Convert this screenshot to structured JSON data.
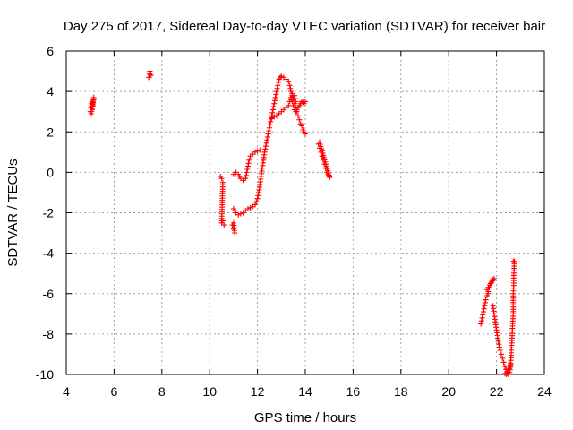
{
  "chart_data": {
    "type": "scatter",
    "title": "Day 275 of 2017, Sidereal Day-to-day VTEC variation (SDTVAR) for receiver bair",
    "xlabel": "GPS time / hours",
    "ylabel": "SDTVAR / TECUs",
    "xlim": [
      4,
      24
    ],
    "ylim": [
      -10,
      6
    ],
    "xticks": [
      "4",
      "6",
      "8",
      "10",
      "12",
      "14",
      "16",
      "18",
      "20",
      "22",
      "24"
    ],
    "yticks": [
      "-10",
      "-8",
      "-6",
      "-4",
      "-2",
      "0",
      "2",
      "4",
      "6"
    ],
    "grid": true,
    "marker": "+",
    "color": "#ff0000",
    "series": [
      {
        "name": "SDTVAR",
        "segments": [
          [
            [
              5.0,
              3.0
            ],
            [
              5.03,
              3.2
            ],
            [
              5.06,
              3.4
            ],
            [
              5.08,
              3.1
            ],
            [
              5.1,
              3.5
            ],
            [
              5.12,
              3.3
            ],
            [
              5.15,
              3.7
            ],
            [
              5.05,
              2.9
            ]
          ],
          [
            [
              7.45,
              4.7
            ],
            [
              7.48,
              4.85
            ],
            [
              7.5,
              5.0
            ],
            [
              7.52,
              4.9
            ],
            [
              7.55,
              4.8
            ]
          ],
          [
            [
              10.45,
              -0.2
            ],
            [
              10.5,
              -0.3
            ],
            [
              10.55,
              -0.5
            ],
            [
              10.5,
              -2.5
            ],
            [
              10.55,
              -2.4
            ],
            [
              10.6,
              -2.6
            ]
          ],
          [
            [
              10.95,
              -2.6
            ],
            [
              11.0,
              -2.8
            ],
            [
              11.05,
              -3.0
            ],
            [
              11.0,
              -2.5
            ]
          ],
          [
            [
              11.0,
              -0.1
            ],
            [
              11.1,
              0.0
            ],
            [
              11.2,
              -0.1
            ],
            [
              11.3,
              -0.3
            ],
            [
              11.4,
              -0.4
            ],
            [
              11.5,
              -0.3
            ],
            [
              11.55,
              0.0
            ],
            [
              11.6,
              0.3
            ],
            [
              11.65,
              0.6
            ],
            [
              11.7,
              0.8
            ],
            [
              11.8,
              0.9
            ],
            [
              11.9,
              1.0
            ],
            [
              12.0,
              1.05
            ],
            [
              12.1,
              1.1
            ]
          ],
          [
            [
              11.0,
              -1.8
            ],
            [
              11.1,
              -2.0
            ],
            [
              11.2,
              -2.1
            ],
            [
              11.3,
              -2.05
            ],
            [
              11.4,
              -2.0
            ],
            [
              11.5,
              -1.9
            ],
            [
              11.6,
              -1.8
            ],
            [
              11.7,
              -1.75
            ],
            [
              11.8,
              -1.7
            ],
            [
              11.9,
              -1.6
            ],
            [
              12.0,
              -1.3
            ],
            [
              12.05,
              -1.0
            ],
            [
              12.1,
              -0.6
            ],
            [
              12.15,
              -0.2
            ],
            [
              12.2,
              0.2
            ],
            [
              12.25,
              0.6
            ],
            [
              12.3,
              1.0
            ],
            [
              12.35,
              1.3
            ],
            [
              12.4,
              1.6
            ],
            [
              12.45,
              1.9
            ],
            [
              12.5,
              2.2
            ],
            [
              12.55,
              2.5
            ],
            [
              12.6,
              2.8
            ],
            [
              12.65,
              3.1
            ],
            [
              12.7,
              3.4
            ],
            [
              12.75,
              3.7
            ],
            [
              12.8,
              4.0
            ],
            [
              12.85,
              4.3
            ],
            [
              12.9,
              4.6
            ],
            [
              12.95,
              4.7
            ],
            [
              13.0,
              4.75
            ],
            [
              13.1,
              4.7
            ],
            [
              13.2,
              4.6
            ],
            [
              13.3,
              4.5
            ],
            [
              13.35,
              4.3
            ],
            [
              13.4,
              4.0
            ],
            [
              13.45,
              3.8
            ],
            [
              13.5,
              3.6
            ],
            [
              13.55,
              3.4
            ],
            [
              13.6,
              3.2
            ],
            [
              13.65,
              3.0
            ],
            [
              13.7,
              2.8
            ],
            [
              13.75,
              2.6
            ],
            [
              13.8,
              2.4
            ],
            [
              13.85,
              2.3
            ],
            [
              13.9,
              2.1
            ],
            [
              13.95,
              2.0
            ],
            [
              14.0,
              1.9
            ]
          ],
          [
            [
              12.6,
              2.7
            ],
            [
              12.7,
              2.75
            ],
            [
              12.8,
              2.8
            ],
            [
              12.9,
              2.9
            ],
            [
              13.0,
              3.0
            ],
            [
              13.1,
              3.1
            ],
            [
              13.2,
              3.2
            ],
            [
              13.3,
              3.3
            ],
            [
              13.35,
              3.5
            ],
            [
              13.4,
              3.6
            ],
            [
              13.45,
              3.5
            ],
            [
              13.5,
              3.3
            ],
            [
              13.55,
              3.1
            ],
            [
              13.6,
              3.0
            ],
            [
              13.65,
              3.1
            ],
            [
              13.7,
              3.2
            ],
            [
              13.75,
              3.3
            ],
            [
              13.8,
              3.4
            ],
            [
              13.85,
              3.5
            ],
            [
              13.9,
              3.45
            ],
            [
              13.95,
              3.4
            ],
            [
              14.0,
              3.5
            ]
          ],
          [
            [
              13.4,
              3.7
            ],
            [
              13.45,
              3.9
            ],
            [
              13.5,
              3.6
            ],
            [
              13.55,
              3.8
            ],
            [
              13.6,
              3.5
            ]
          ],
          [
            [
              14.55,
              1.4
            ],
            [
              14.6,
              1.2
            ],
            [
              14.65,
              1.0
            ],
            [
              14.7,
              0.8
            ],
            [
              14.75,
              0.6
            ],
            [
              14.8,
              0.4
            ],
            [
              14.85,
              0.2
            ],
            [
              14.9,
              0.0
            ],
            [
              14.95,
              -0.1
            ],
            [
              15.0,
              -0.2
            ],
            [
              15.02,
              -0.25
            ],
            [
              14.6,
              1.5
            ]
          ],
          [
            [
              21.35,
              -7.5
            ],
            [
              21.4,
              -7.2
            ],
            [
              21.45,
              -6.9
            ],
            [
              21.5,
              -6.6
            ],
            [
              21.55,
              -6.3
            ],
            [
              21.6,
              -6.1
            ],
            [
              21.65,
              -5.9
            ],
            [
              21.7,
              -5.7
            ],
            [
              21.75,
              -5.5
            ],
            [
              21.8,
              -5.4
            ],
            [
              21.85,
              -5.3
            ],
            [
              21.9,
              -5.25
            ],
            [
              21.6,
              -5.8
            ],
            [
              21.65,
              -6.0
            ]
          ],
          [
            [
              21.85,
              -6.6
            ],
            [
              21.9,
              -7.0
            ],
            [
              21.95,
              -7.4
            ],
            [
              22.0,
              -7.8
            ],
            [
              22.05,
              -8.2
            ],
            [
              22.1,
              -8.5
            ],
            [
              22.15,
              -8.8
            ],
            [
              22.2,
              -9.0
            ],
            [
              22.25,
              -9.2
            ],
            [
              22.3,
              -9.4
            ],
            [
              22.35,
              -9.6
            ],
            [
              22.4,
              -9.75
            ],
            [
              22.45,
              -9.85
            ],
            [
              22.5,
              -9.9
            ],
            [
              22.55,
              -9.7
            ],
            [
              22.6,
              -9.3
            ],
            [
              22.62,
              -8.8
            ],
            [
              22.65,
              -8.2
            ],
            [
              22.67,
              -7.6
            ],
            [
              22.7,
              -7.0
            ],
            [
              22.7,
              -6.0
            ],
            [
              22.72,
              -5.6
            ],
            [
              22.72,
              -5.1
            ],
            [
              22.75,
              -4.4
            ],
            [
              22.7,
              -4.4
            ]
          ],
          [
            [
              22.35,
              -9.95
            ],
            [
              22.4,
              -10.0
            ],
            [
              22.45,
              -9.95
            ],
            [
              22.5,
              -10.0
            ],
            [
              22.55,
              -9.9
            ],
            [
              22.6,
              -9.5
            ],
            [
              22.5,
              -9.6
            ]
          ]
        ]
      }
    ]
  }
}
